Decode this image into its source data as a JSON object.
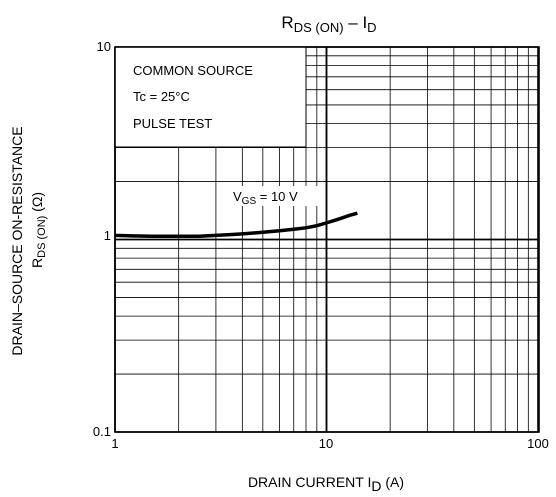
{
  "chart_data": {
    "type": "line",
    "title": {
      "main": "R",
      "sub1": "DS (ON)",
      "mid": " – I",
      "sub2": "D"
    },
    "xlabel": {
      "main": "DRAIN CURRENT   I",
      "sub": "D",
      "tail": "   (A)"
    },
    "ylabel": {
      "line1": "DRAIN–SOURCE ON-RESISTANCE",
      "line2_main": "R",
      "line2_sub": "DS (ON)",
      "line2_tail": "   (Ω)"
    },
    "x_scale": "log",
    "y_scale": "log",
    "xlim": [
      1,
      100
    ],
    "ylim": [
      0.1,
      10
    ],
    "x_ticks": [
      {
        "value": 1,
        "label": "1"
      },
      {
        "value": 10,
        "label": "10"
      },
      {
        "value": 100,
        "label": "100"
      }
    ],
    "y_ticks": [
      {
        "value": 0.1,
        "label": "0.1"
      },
      {
        "value": 1,
        "label": "1"
      },
      {
        "value": 10,
        "label": "10"
      }
    ],
    "grid": true,
    "info_box": [
      "COMMON SOURCE",
      "Tc = 25°C",
      "PULSE TEST"
    ],
    "series": [
      {
        "label": {
          "main": "V",
          "sub": "GS",
          "tail": " = 10 V"
        },
        "color": "#000000",
        "points": [
          [
            1.0,
            1.05
          ],
          [
            1.2,
            1.045
          ],
          [
            1.5,
            1.04
          ],
          [
            2.0,
            1.04
          ],
          [
            2.5,
            1.04
          ],
          [
            3.0,
            1.05
          ],
          [
            3.5,
            1.06
          ],
          [
            4.0,
            1.07
          ],
          [
            5.0,
            1.09
          ],
          [
            6.0,
            1.11
          ],
          [
            7.0,
            1.13
          ],
          [
            8.0,
            1.15
          ],
          [
            9.0,
            1.18
          ],
          [
            10.0,
            1.22
          ],
          [
            11.0,
            1.26
          ],
          [
            12.0,
            1.3
          ],
          [
            13.0,
            1.34
          ],
          [
            14.0,
            1.37
          ]
        ]
      }
    ]
  }
}
